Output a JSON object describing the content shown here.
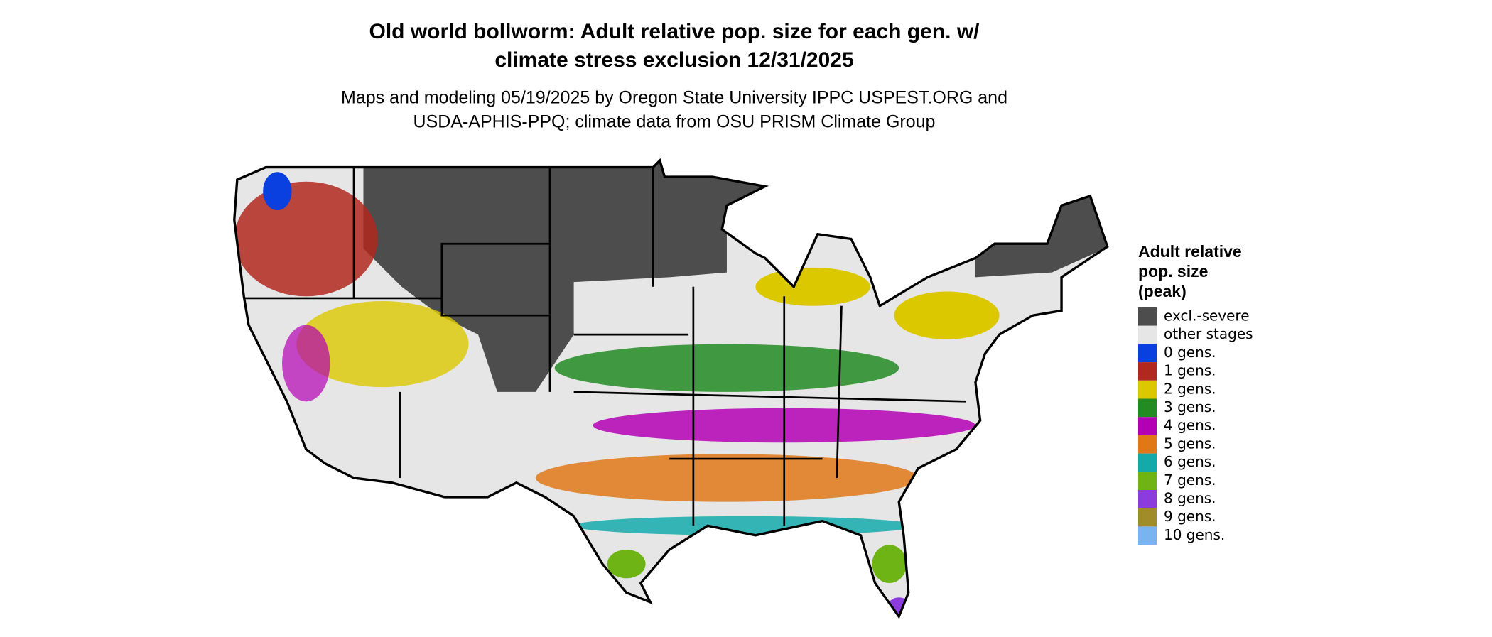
{
  "header": {
    "title": [
      "Old world bollworm: Adult relative pop. size for each gen. w/",
      "climate stress exclusion 12/31/2025"
    ],
    "subtitle": [
      "Maps and modeling 05/19/2025 by Oregon State University IPPC USPEST.ORG and",
      "USDA-APHIS-PPQ; climate data from OSU PRISM Climate Group"
    ]
  },
  "legend": {
    "title": [
      "Adult relative",
      "pop. size",
      "(peak)"
    ],
    "items": [
      {
        "label": "excl.-severe",
        "color": "#4d4d4d"
      },
      {
        "label": "other stages",
        "color": "#e6e6e6"
      },
      {
        "label": "0 gens.",
        "color": "#0a3fe0"
      },
      {
        "label": "1 gens.",
        "color": "#b0281e"
      },
      {
        "label": "2 gens.",
        "color": "#dcc800"
      },
      {
        "label": "3 gens.",
        "color": "#228b22"
      },
      {
        "label": "4 gens.",
        "color": "#b400b4"
      },
      {
        "label": "5 gens.",
        "color": "#e07818"
      },
      {
        "label": "6 gens.",
        "color": "#14aaaa"
      },
      {
        "label": "7 gens.",
        "color": "#6eb414"
      },
      {
        "label": "8 gens.",
        "color": "#8c3cdc"
      },
      {
        "label": "9 gens.",
        "color": "#a08c28"
      },
      {
        "label": "10 gens.",
        "color": "#78b4f0"
      }
    ]
  }
}
